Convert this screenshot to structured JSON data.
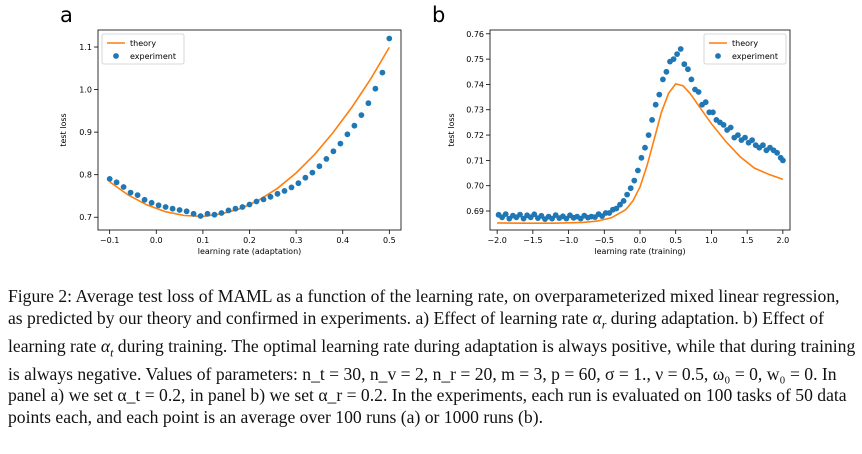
{
  "chart_data": [
    {
      "panel_label": "a",
      "type": "line",
      "title": "",
      "xlabel": "learning rate (adaptation)",
      "ylabel": "test loss",
      "xlim": [
        -0.125,
        0.525
      ],
      "ylim": [
        0.67,
        1.14
      ],
      "xticks": [
        -0.1,
        0.0,
        0.1,
        0.2,
        0.3,
        0.4,
        0.5
      ],
      "xtick_labels": [
        "−0.1",
        "0.0",
        "0.1",
        "0.2",
        "0.3",
        "0.4",
        "0.5"
      ],
      "yticks": [
        0.7,
        0.8,
        0.9,
        1.0,
        1.1
      ],
      "ytick_labels": [
        "0.7",
        "0.8",
        "0.9",
        "1.0",
        "1.1"
      ],
      "legend": [
        "theory",
        "experiment"
      ],
      "legend_position": "top-left",
      "series": [
        {
          "name": "theory",
          "kind": "line",
          "color": "#ff7f0e",
          "x": [
            -0.1,
            -0.06,
            -0.02,
            0.02,
            0.06,
            0.1,
            0.14,
            0.18,
            0.22,
            0.26,
            0.3,
            0.34,
            0.38,
            0.42,
            0.46,
            0.5
          ],
          "y": [
            0.783,
            0.752,
            0.729,
            0.713,
            0.704,
            0.702,
            0.708,
            0.72,
            0.74,
            0.768,
            0.804,
            0.848,
            0.9,
            0.959,
            1.025,
            1.099
          ]
        },
        {
          "name": "experiment",
          "kind": "scatter",
          "color": "#1f77b4",
          "x": [
            -0.1,
            -0.085,
            -0.07,
            -0.055,
            -0.04,
            -0.025,
            -0.01,
            0.005,
            0.02,
            0.035,
            0.05,
            0.065,
            0.08,
            0.095,
            0.11,
            0.125,
            0.14,
            0.155,
            0.17,
            0.185,
            0.2,
            0.215,
            0.23,
            0.245,
            0.26,
            0.275,
            0.29,
            0.305,
            0.32,
            0.335,
            0.35,
            0.365,
            0.38,
            0.395,
            0.41,
            0.425,
            0.44,
            0.455,
            0.47,
            0.485,
            0.5
          ],
          "y": [
            0.79,
            0.782,
            0.771,
            0.758,
            0.752,
            0.741,
            0.734,
            0.728,
            0.724,
            0.72,
            0.717,
            0.714,
            0.708,
            0.703,
            0.708,
            0.706,
            0.71,
            0.716,
            0.72,
            0.724,
            0.73,
            0.737,
            0.742,
            0.748,
            0.755,
            0.762,
            0.77,
            0.78,
            0.793,
            0.805,
            0.82,
            0.837,
            0.855,
            0.873,
            0.895,
            0.915,
            0.94,
            0.968,
            1.002,
            1.04,
            1.12
          ]
        }
      ]
    },
    {
      "panel_label": "b",
      "type": "line",
      "title": "",
      "xlabel": "learning rate (training)",
      "ylabel": "test loss",
      "xlim": [
        -2.1,
        2.1
      ],
      "ylim": [
        0.6825,
        0.7615
      ],
      "xticks": [
        -2.0,
        -1.5,
        -1.0,
        -0.5,
        0.0,
        0.5,
        1.0,
        1.5,
        2.0
      ],
      "xtick_labels": [
        "−2.0",
        "−1.5",
        "−1.0",
        "−0.5",
        "0.0",
        "0.5",
        "1.0",
        "1.5",
        "2.0"
      ],
      "yticks": [
        0.69,
        0.7,
        0.71,
        0.72,
        0.73,
        0.74,
        0.75,
        0.76
      ],
      "ytick_labels": [
        "0.69",
        "0.70",
        "0.71",
        "0.72",
        "0.73",
        "0.74",
        "0.75",
        "0.76"
      ],
      "legend": [
        "theory",
        "experiment"
      ],
      "legend_position": "top-right",
      "series": [
        {
          "name": "theory",
          "kind": "line",
          "color": "#ff7f0e",
          "x": [
            -2.0,
            -1.6,
            -1.2,
            -0.8,
            -0.6,
            -0.4,
            -0.2,
            -0.1,
            0.0,
            0.1,
            0.2,
            0.3,
            0.4,
            0.5,
            0.6,
            0.7,
            0.8,
            1.0,
            1.2,
            1.4,
            1.6,
            1.8,
            2.0
          ],
          "y": [
            0.6853,
            0.6852,
            0.6852,
            0.6855,
            0.686,
            0.6873,
            0.6905,
            0.694,
            0.6995,
            0.708,
            0.7185,
            0.729,
            0.7365,
            0.7402,
            0.7395,
            0.7365,
            0.7325,
            0.7245,
            0.7175,
            0.7115,
            0.707,
            0.7045,
            0.7025
          ]
        },
        {
          "name": "experiment",
          "kind": "scatter",
          "color": "#1f77b4",
          "x": [
            -1.98,
            -1.93,
            -1.88,
            -1.83,
            -1.78,
            -1.73,
            -1.68,
            -1.63,
            -1.58,
            -1.53,
            -1.48,
            -1.43,
            -1.38,
            -1.33,
            -1.28,
            -1.23,
            -1.18,
            -1.13,
            -1.08,
            -1.03,
            -0.98,
            -0.93,
            -0.88,
            -0.83,
            -0.78,
            -0.73,
            -0.68,
            -0.63,
            -0.58,
            -0.53,
            -0.48,
            -0.43,
            -0.38,
            -0.33,
            -0.28,
            -0.23,
            -0.18,
            -0.13,
            -0.08,
            -0.03,
            0.02,
            0.07,
            0.12,
            0.17,
            0.22,
            0.27,
            0.32,
            0.37,
            0.42,
            0.47,
            0.52,
            0.57,
            0.62,
            0.67,
            0.72,
            0.77,
            0.82,
            0.87,
            0.92,
            0.97,
            1.02,
            1.07,
            1.12,
            1.17,
            1.22,
            1.27,
            1.32,
            1.37,
            1.42,
            1.47,
            1.52,
            1.57,
            1.62,
            1.67,
            1.72,
            1.77,
            1.82,
            1.87,
            1.92,
            1.97,
            2.0
          ],
          "y": [
            0.6885,
            0.6875,
            0.6888,
            0.687,
            0.6882,
            0.6875,
            0.6886,
            0.687,
            0.6883,
            0.6875,
            0.6887,
            0.6872,
            0.6881,
            0.6868,
            0.6878,
            0.687,
            0.6884,
            0.6872,
            0.6879,
            0.687,
            0.6883,
            0.6873,
            0.6878,
            0.687,
            0.6882,
            0.6874,
            0.6878,
            0.6876,
            0.6888,
            0.688,
            0.6892,
            0.6892,
            0.6905,
            0.691,
            0.6925,
            0.694,
            0.6965,
            0.699,
            0.702,
            0.706,
            0.711,
            0.715,
            0.72,
            0.726,
            0.732,
            0.736,
            0.742,
            0.745,
            0.749,
            0.75,
            0.752,
            0.754,
            0.748,
            0.746,
            0.742,
            0.738,
            0.737,
            0.732,
            0.733,
            0.729,
            0.729,
            0.726,
            0.725,
            0.724,
            0.722,
            0.723,
            0.719,
            0.72,
            0.718,
            0.719,
            0.717,
            0.718,
            0.716,
            0.715,
            0.716,
            0.714,
            0.715,
            0.714,
            0.713,
            0.711,
            0.71
          ]
        }
      ]
    }
  ],
  "caption": {
    "label": "Figure 2:",
    "seg1": " Average test loss of MAML as a function of the learning rate, on overparameterized mixed linear regression, as predicted by our theory and confirmed in experiments. a) Effect of learning rate ",
    "seg2": " during adaptation. b) Effect of learning rate ",
    "seg3": " during training. The optimal learning rate during adaptation is always positive, while that during training is always negative. Values of parameters: ",
    "params": "n_t = 30, n_v = 2, n_r = 20, m = 3, p = 60, σ = 1., ν = 0.5, ω₀ = 0, w₀ = 0",
    "seg4": ". In panel a) we set ",
    "alpha_t_val": "α_t = 0.2",
    "seg5": ", in panel b) we set ",
    "alpha_r_val": "α_r = 0.2",
    "seg6": ". In the experiments, each run is evaluated on 100 tasks of 50 data points each, and each point is an average over 100 runs (a) or 1000 runs (b)."
  }
}
